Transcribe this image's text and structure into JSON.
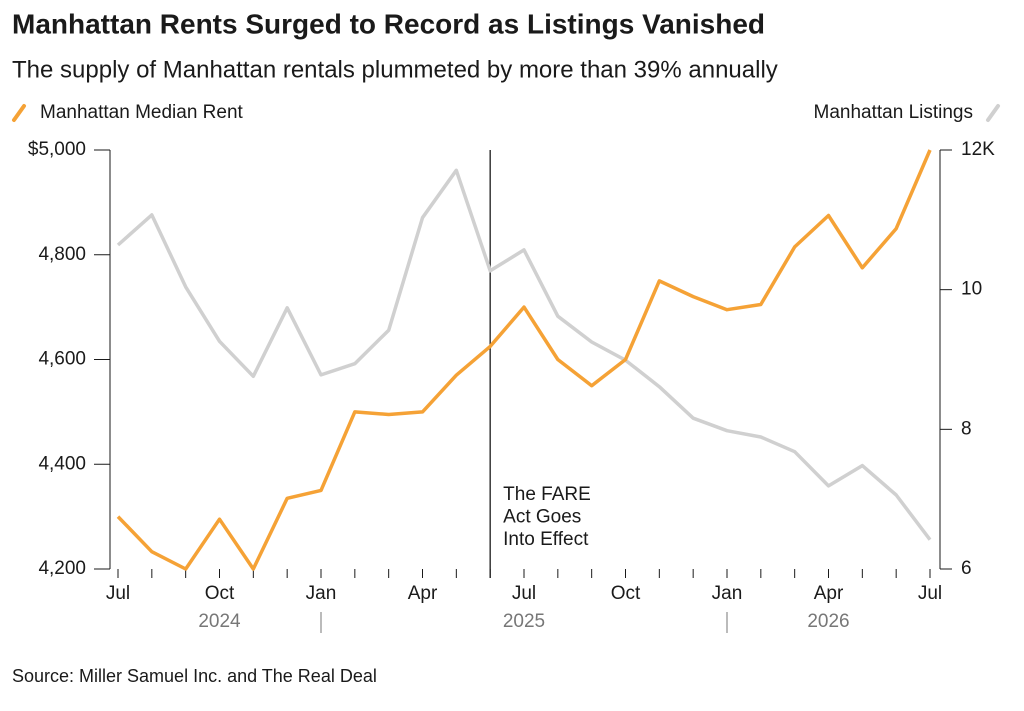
{
  "chart_data": {
    "type": "line",
    "title": "Manhattan Rents Surged to Record as Listings Vanished",
    "subtitle": "The supply of Manhattan rentals plummeted by more than 39% annually",
    "categories": [
      "Jul",
      null,
      null,
      "Oct",
      null,
      null,
      "Jan",
      null,
      null,
      "Apr",
      null,
      null,
      "Jul",
      null,
      null,
      "Oct",
      null,
      null,
      "Jan",
      null,
      null,
      "Apr",
      null,
      null,
      "Jul"
    ],
    "years": [
      "2024",
      "2025",
      "2026"
    ],
    "annotation": [
      "The FARE",
      "Act Goes",
      "Into Effect"
    ],
    "series": [
      {
        "name": "Manhattan Median Rent",
        "color": "#f5a236",
        "values": [
          4300,
          4233,
          4200,
          4295,
          4200,
          4335,
          4350,
          4500,
          4495,
          4500,
          4570,
          4625,
          4700,
          4600,
          4550,
          4600,
          4750,
          4720,
          4695,
          4705,
          4815,
          4875,
          4775,
          4850,
          5000
        ]
      },
      {
        "name": "Manhattan Listings",
        "color": "#d0d0d0",
        "axis": "y2",
        "values": [
          10.64,
          11.07,
          10.04,
          9.26,
          8.76,
          9.74,
          8.78,
          8.94,
          9.42,
          11.03,
          11.71,
          10.27,
          10.57,
          9.62,
          9.25,
          8.99,
          8.61,
          8.16,
          7.98,
          7.89,
          7.68,
          7.19,
          7.48,
          7.06,
          6.42
        ]
      }
    ],
    "ylim": [
      4200,
      5000
    ],
    "yticks": [
      {
        "value": 4200,
        "label": "4,200"
      },
      {
        "value": 4400,
        "label": "4,400"
      },
      {
        "value": 4600,
        "label": "4,600"
      },
      {
        "value": 4800,
        "label": "4,800"
      },
      {
        "value": 5000,
        "label": "$5,000"
      }
    ],
    "y2lim": [
      6,
      12
    ],
    "y2ticks": [
      6,
      8,
      10,
      {
        "value": 12,
        "label": "12K"
      }
    ],
    "source": "Source: Miller Samuel Inc. and The Real Deal"
  }
}
